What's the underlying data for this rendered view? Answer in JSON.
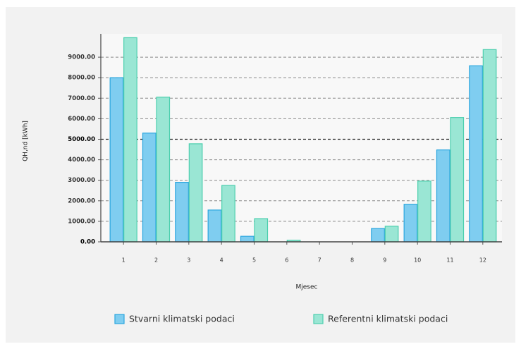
{
  "chart_data": {
    "type": "bar",
    "x_label": "Mjesec",
    "y_label": "QH,nd [kWh]",
    "categories": [
      "1",
      "2",
      "3",
      "4",
      "5",
      "6",
      "7",
      "8",
      "9",
      "10",
      "11",
      "12"
    ],
    "series": [
      {
        "name": "Stvarni klimatski podaci",
        "color": "#7fcdf0",
        "values": [
          8000,
          5300,
          2900,
          1550,
          270,
          0,
          0,
          0,
          650,
          1830,
          4480,
          8580
        ]
      },
      {
        "name": "Referentni klimatski podaci",
        "color": "#9ae6d4",
        "values": [
          9950,
          7050,
          4780,
          2750,
          1130,
          80,
          0,
          0,
          760,
          2960,
          6060,
          9370
        ]
      }
    ],
    "ylim": [
      0,
      10000
    ],
    "yticks": [
      {
        "value": 0,
        "label": "0.00"
      },
      {
        "value": 1000,
        "label": "1000.00"
      },
      {
        "value": 2000,
        "label": "2000.00"
      },
      {
        "value": 3000,
        "label": "3000.00"
      },
      {
        "value": 4000,
        "label": "4000.00"
      },
      {
        "value": 5000,
        "label": "5000.00"
      },
      {
        "value": 6000,
        "label": "6000.00"
      },
      {
        "value": 7000,
        "label": "7000.00"
      },
      {
        "value": 8000,
        "label": "8000.00"
      },
      {
        "value": 9000,
        "label": "9000.00"
      }
    ],
    "grid": true,
    "legend": "bottom"
  }
}
